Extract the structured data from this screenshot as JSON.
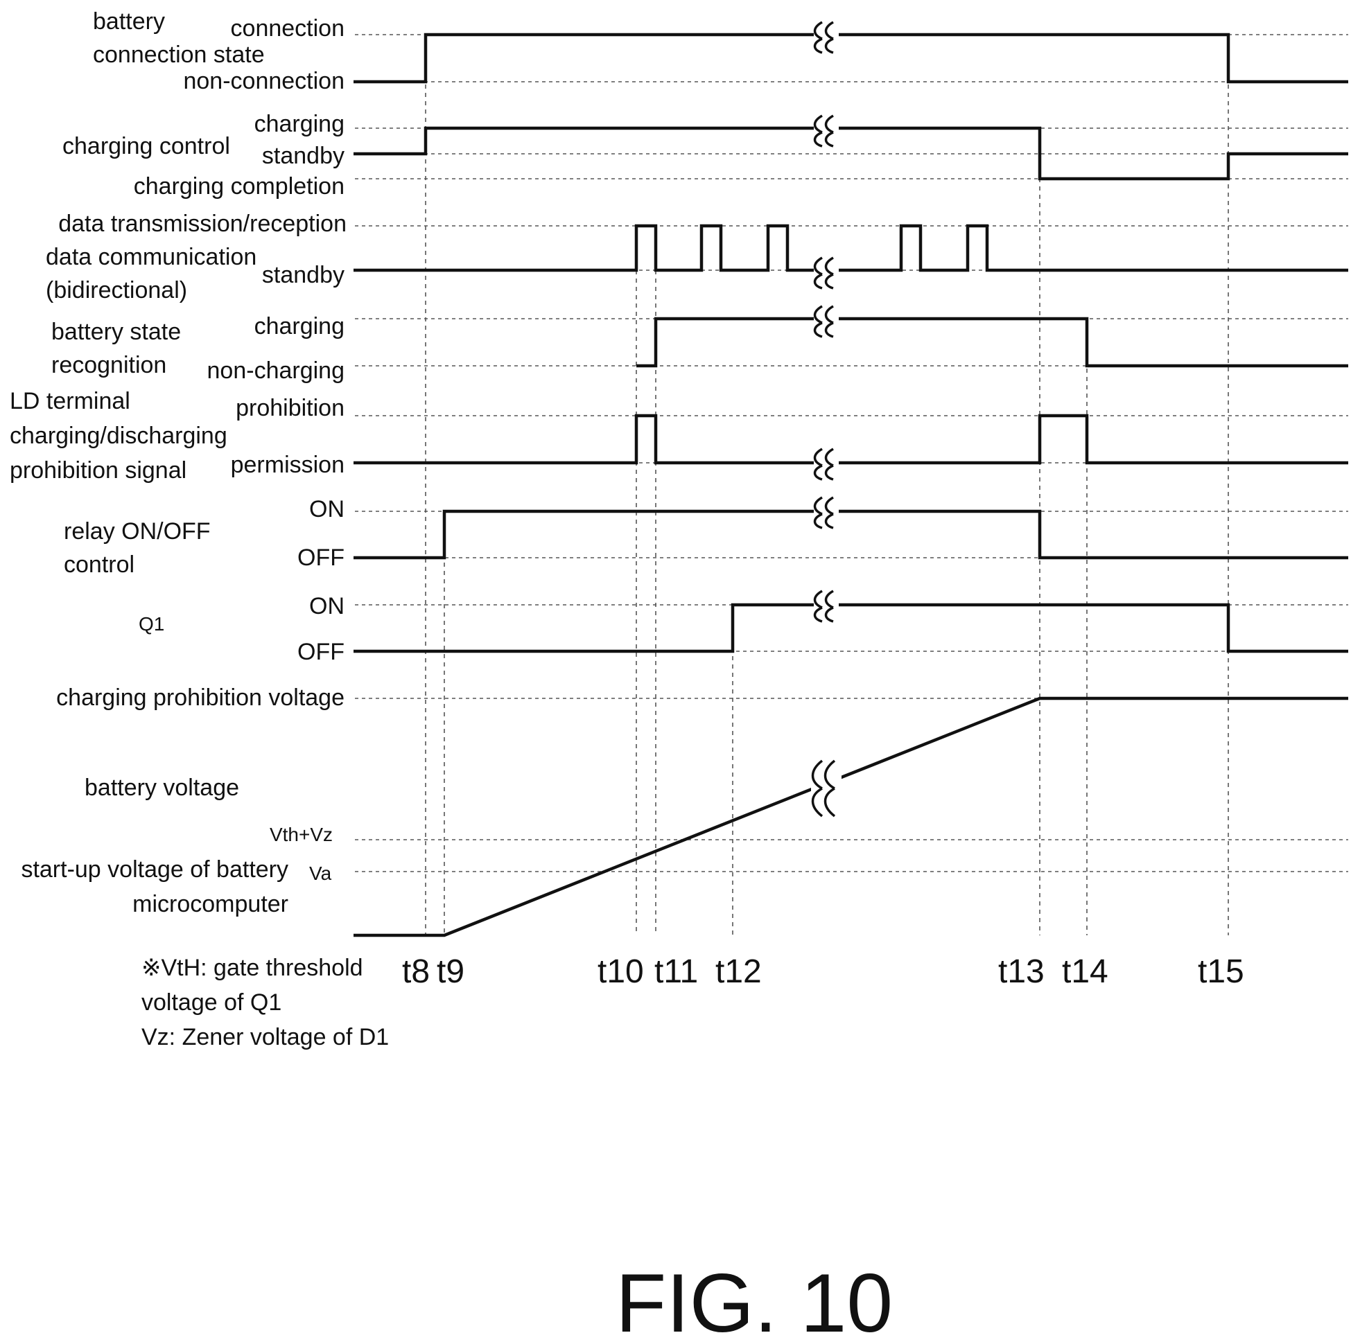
{
  "figure_label": "FIG. 10",
  "signals": [
    {
      "id": "battery-connection-state",
      "name_lines": [
        "battery",
        "connection state"
      ],
      "levels": [
        "connection",
        "non-connection"
      ]
    },
    {
      "id": "charging-control",
      "name_lines": [
        "charging control"
      ],
      "levels": [
        "charging",
        "standby",
        "charging completion"
      ]
    },
    {
      "id": "data-communication",
      "name_lines": [
        "data communication",
        "(bidirectional)"
      ],
      "levels": [
        "data transmission/reception",
        "standby"
      ]
    },
    {
      "id": "battery-state-recognition",
      "name_lines": [
        "battery state",
        "recognition"
      ],
      "levels": [
        "charging",
        "non-charging"
      ]
    },
    {
      "id": "ld-terminal-signal",
      "name_lines": [
        "LD terminal",
        "charging/discharging",
        "prohibition signal"
      ],
      "levels": [
        "prohibition",
        "permission"
      ]
    },
    {
      "id": "relay-control",
      "name_lines": [
        "relay ON/OFF",
        "control"
      ],
      "levels": [
        "ON",
        "OFF"
      ]
    },
    {
      "id": "q1",
      "name_lines": [
        "Q1"
      ],
      "levels": [
        "ON",
        "OFF"
      ]
    },
    {
      "id": "battery-voltage",
      "name_lines": [
        "battery voltage"
      ],
      "levels": [
        "charging prohibition voltage"
      ]
    }
  ],
  "voltage_levels": {
    "vth_vz": "Vth+Vz",
    "va": "Va",
    "startup_lines": [
      "start-up voltage of battery",
      "microcomputer"
    ]
  },
  "time_labels": [
    "t8",
    "t9",
    "t10",
    "t11",
    "t12",
    "t13",
    "t14",
    "t15"
  ],
  "notes": [
    "※VtH:  gate  threshold",
    "voltage of Q1",
    "Vz: Zener voltage of D1"
  ]
}
